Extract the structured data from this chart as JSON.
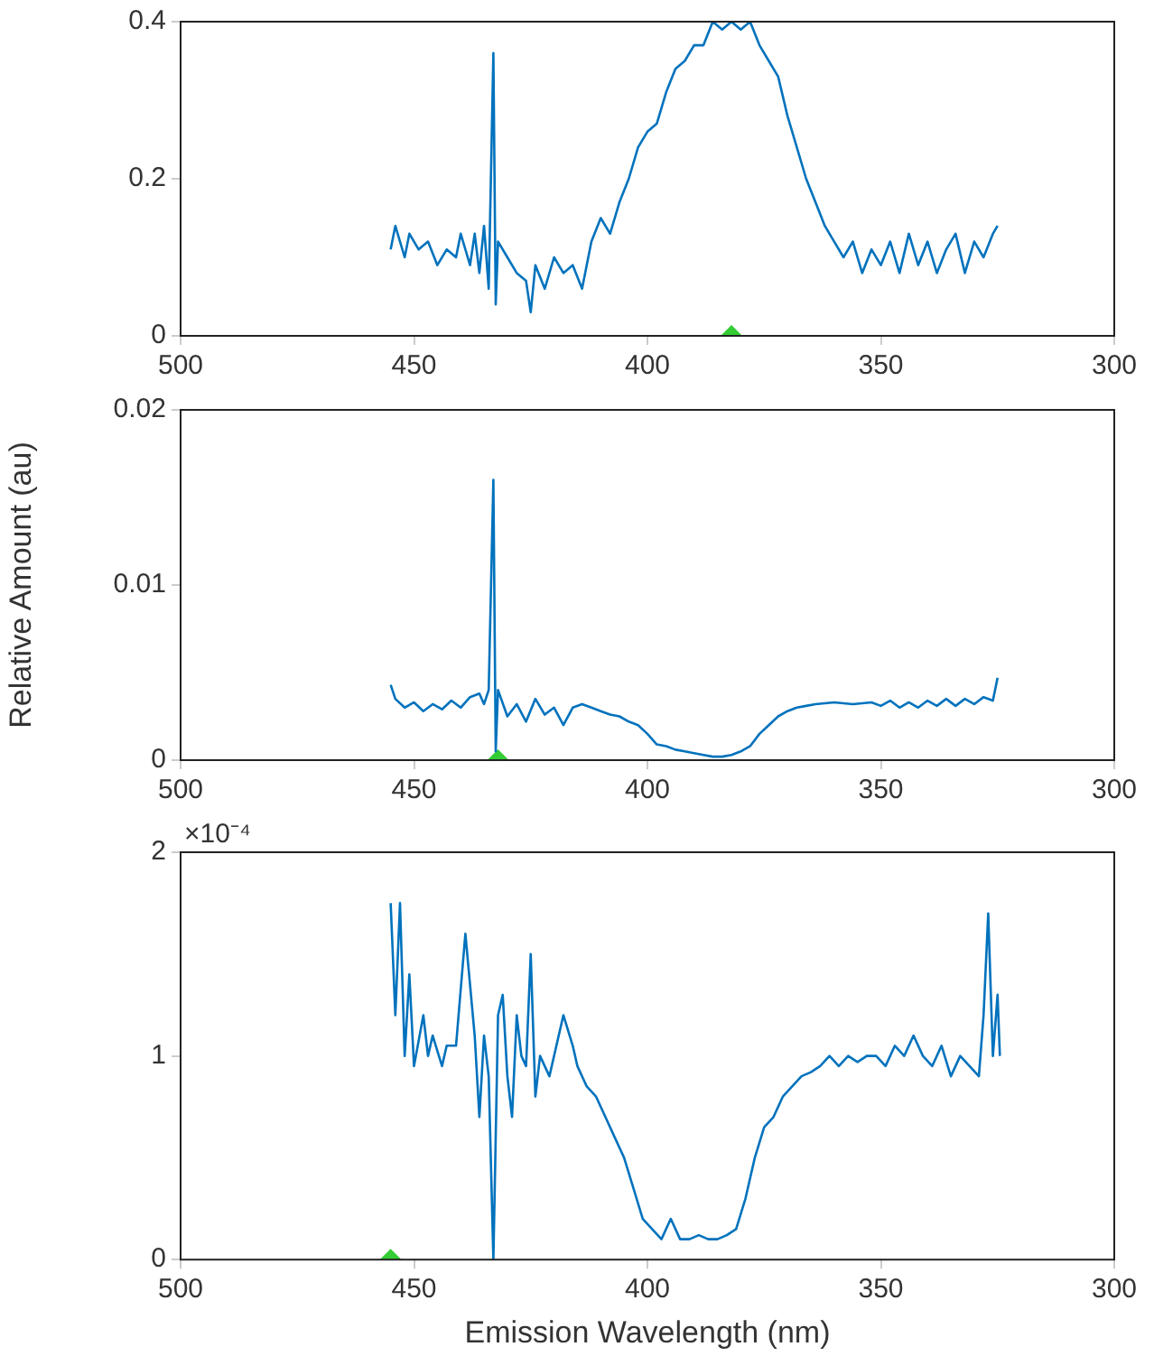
{
  "chart_data": [
    {
      "type": "line",
      "xlim": [
        500,
        300
      ],
      "xticks": [
        500,
        450,
        400,
        350,
        300
      ],
      "ylim": [
        0,
        0.4
      ],
      "yticks": [
        0,
        0.2,
        0.4
      ],
      "grid": false,
      "legend": false,
      "marker": "none",
      "series": [
        {
          "color": "#0072bd",
          "x": [
            455,
            454,
            452,
            451,
            449,
            447,
            445,
            443,
            441,
            440,
            438,
            437,
            436,
            435,
            434,
            433,
            432.5,
            432,
            430,
            428,
            426,
            425,
            424,
            422,
            420,
            418,
            416,
            414,
            412,
            410,
            408,
            406,
            404,
            402,
            400,
            398,
            396,
            394,
            392,
            390,
            388,
            386,
            384,
            382,
            380,
            378,
            376,
            374,
            372,
            370,
            368,
            366,
            364,
            362,
            360,
            358,
            356,
            354,
            352,
            350,
            348,
            346,
            344,
            342,
            340,
            338,
            336,
            334,
            332,
            330,
            328,
            326,
            325
          ],
          "values": [
            0.11,
            0.14,
            0.1,
            0.13,
            0.11,
            0.12,
            0.09,
            0.11,
            0.1,
            0.13,
            0.09,
            0.13,
            0.08,
            0.14,
            0.06,
            0.36,
            0.04,
            0.12,
            0.1,
            0.08,
            0.07,
            0.03,
            0.09,
            0.06,
            0.1,
            0.08,
            0.09,
            0.06,
            0.12,
            0.15,
            0.13,
            0.17,
            0.2,
            0.24,
            0.26,
            0.27,
            0.31,
            0.34,
            0.35,
            0.37,
            0.37,
            0.4,
            0.39,
            0.4,
            0.39,
            0.4,
            0.37,
            0.35,
            0.33,
            0.28,
            0.24,
            0.2,
            0.17,
            0.14,
            0.12,
            0.1,
            0.12,
            0.08,
            0.11,
            0.09,
            0.12,
            0.08,
            0.13,
            0.09,
            0.12,
            0.08,
            0.11,
            0.13,
            0.08,
            0.12,
            0.1,
            0.13,
            0.14
          ]
        },
        {
          "type": "scatter",
          "color": "#33cc33",
          "marker": "diamond",
          "x": [
            382
          ],
          "values": [
            0
          ]
        }
      ]
    },
    {
      "type": "line",
      "ylabel": "Relative Amount (au)",
      "xlim": [
        500,
        300
      ],
      "xticks": [
        500,
        450,
        400,
        350,
        300
      ],
      "ylim": [
        0,
        0.02
      ],
      "yticks": [
        0,
        0.01,
        0.02
      ],
      "grid": false,
      "legend": false,
      "marker": "none",
      "series": [
        {
          "color": "#0072bd",
          "x": [
            455,
            454,
            452,
            450,
            448,
            446,
            444,
            442,
            440,
            438,
            436,
            435,
            434,
            433,
            432.5,
            432,
            430,
            428,
            426,
            424,
            422,
            420,
            418,
            416,
            414,
            412,
            410,
            408,
            406,
            404,
            402,
            400,
            398,
            396,
            394,
            392,
            390,
            388,
            386,
            384,
            382,
            380,
            378,
            376,
            374,
            372,
            370,
            368,
            366,
            364,
            360,
            356,
            352,
            350,
            348,
            346,
            344,
            342,
            340,
            338,
            336,
            334,
            332,
            330,
            328,
            326,
            325
          ],
          "values": [
            0.0043,
            0.0035,
            0.003,
            0.0033,
            0.0028,
            0.0032,
            0.0029,
            0.0034,
            0.003,
            0.0036,
            0.0038,
            0.0032,
            0.004,
            0.016,
            0.0005,
            0.004,
            0.0025,
            0.0032,
            0.0022,
            0.0035,
            0.0026,
            0.003,
            0.002,
            0.003,
            0.0032,
            0.003,
            0.0028,
            0.0026,
            0.0025,
            0.0022,
            0.002,
            0.0015,
            0.0009,
            0.0008,
            0.0006,
            0.0005,
            0.0004,
            0.0003,
            0.0002,
            0.0002,
            0.0003,
            0.0005,
            0.0008,
            0.0015,
            0.002,
            0.0025,
            0.0028,
            0.003,
            0.0031,
            0.0032,
            0.0033,
            0.0032,
            0.0033,
            0.0031,
            0.0034,
            0.003,
            0.0033,
            0.003,
            0.0034,
            0.0031,
            0.0035,
            0.0031,
            0.0035,
            0.0032,
            0.0036,
            0.0034,
            0.0047
          ]
        },
        {
          "type": "scatter",
          "color": "#33cc33",
          "marker": "diamond",
          "x": [
            432
          ],
          "values": [
            0
          ]
        }
      ]
    },
    {
      "type": "line",
      "xlabel": "Emission Wavelength (nm)",
      "annotations": [
        "×10⁻⁴"
      ],
      "xlim": [
        500,
        300
      ],
      "xticks": [
        500,
        450,
        400,
        350,
        300
      ],
      "ylim": [
        0,
        2
      ],
      "yticks": [
        0,
        1,
        2
      ],
      "grid": false,
      "legend": false,
      "marker": "none",
      "series": [
        {
          "color": "#0072bd",
          "x": [
            455,
            454,
            453,
            452,
            451,
            450,
            448,
            447,
            446,
            444,
            443,
            441,
            439,
            437,
            436,
            435,
            434,
            433,
            432,
            431,
            430,
            429,
            428,
            427,
            426,
            425,
            424,
            423,
            421,
            419,
            418,
            416,
            415,
            413,
            411,
            409,
            407,
            405,
            403,
            401,
            399,
            397,
            395,
            393,
            391,
            389,
            387,
            385,
            383,
            381,
            379,
            377,
            375,
            373,
            371,
            369,
            367,
            365,
            363,
            361,
            359,
            357,
            355,
            353,
            351,
            349,
            347,
            345,
            343,
            341,
            339,
            337,
            335,
            333,
            331,
            329,
            328,
            327,
            326,
            325,
            324.5
          ],
          "values": [
            1.75,
            1.2,
            1.75,
            1.0,
            1.4,
            0.95,
            1.2,
            1.0,
            1.1,
            0.95,
            1.05,
            1.05,
            1.6,
            1.1,
            0.7,
            1.1,
            0.9,
            0.0,
            1.2,
            1.3,
            0.9,
            0.7,
            1.2,
            1.0,
            0.95,
            1.5,
            0.8,
            1.0,
            0.9,
            1.1,
            1.2,
            1.05,
            0.95,
            0.85,
            0.8,
            0.7,
            0.6,
            0.5,
            0.35,
            0.2,
            0.15,
            0.1,
            0.2,
            0.1,
            0.1,
            0.12,
            0.1,
            0.1,
            0.12,
            0.15,
            0.3,
            0.5,
            0.65,
            0.7,
            0.8,
            0.85,
            0.9,
            0.92,
            0.95,
            1.0,
            0.95,
            1.0,
            0.97,
            1.0,
            1.0,
            0.95,
            1.05,
            1.0,
            1.1,
            1.0,
            0.95,
            1.05,
            0.9,
            1.0,
            0.95,
            0.9,
            1.2,
            1.7,
            1.0,
            1.3,
            1.0
          ]
        },
        {
          "type": "scatter",
          "color": "#33cc33",
          "marker": "diamond",
          "x": [
            455
          ],
          "values": [
            0
          ]
        }
      ]
    }
  ]
}
